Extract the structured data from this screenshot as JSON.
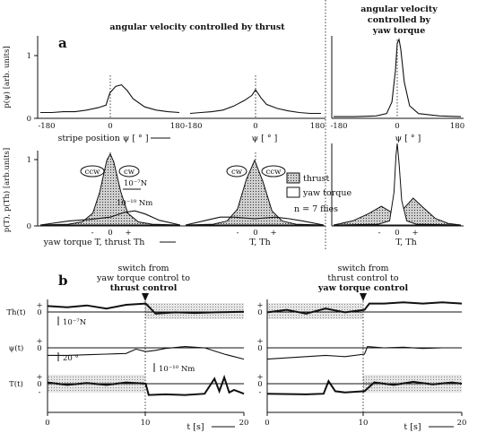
{
  "panel_a": {
    "label": "a",
    "title_thrust": "angular velocity controlled by thrust",
    "title_yaw": [
      "angular velocity",
      "controlled by",
      "yaw torque"
    ],
    "top_row": {
      "ylabel": "p(ψ) [arb. units]",
      "y_ticks": [
        "1",
        "0"
      ],
      "x_ticks_left": [
        "-180",
        "0",
        "180"
      ],
      "x_ticks_mid": [
        "-180",
        "0",
        "180"
      ],
      "x_ticks_right": [
        "-180",
        "0",
        "180"
      ],
      "xlabel_left": "stripe position ψ [ ° ]",
      "xlabel_mid": "ψ [ ° ]",
      "xlabel_right": "ψ [ ° ]"
    },
    "bottom_row": {
      "ylabel": "p(T), p(Th) [arb.units]",
      "y_ticks": [
        "1",
        "0"
      ],
      "x_ticks": [
        "-",
        "0",
        "+"
      ],
      "xlabel_left": "yaw torque T, thrust Th",
      "xlabel_mid": "T, Th",
      "xlabel_right": "T, Th",
      "rotation_left": [
        "ccw",
        "cw"
      ],
      "rotation_mid": [
        "cw",
        "ccw"
      ],
      "scale_thrust": "10⁻⁷N",
      "scale_torque": "10⁻¹⁰ Nm"
    },
    "legend": {
      "thrust": "thrust",
      "yaw_torque": "yaw torque",
      "n": "n = 7 flies"
    }
  },
  "panel_b": {
    "label": "b",
    "left_title": [
      "switch from",
      "yaw torque control to",
      "thrust control"
    ],
    "right_title": [
      "switch from",
      "thrust control to",
      "yaw torque control"
    ],
    "ylabel_thrust": "Th(t)",
    "ylabel_psi": "ψ(t)",
    "ylabel_torque": "T(t)",
    "sign_ticks": [
      "+",
      "0",
      "-"
    ],
    "scale_thrust": "10⁻⁷N",
    "scale_psi": "20 °",
    "scale_torque": "10⁻¹⁰ Nm",
    "x_ticks": [
      "0",
      "10",
      "20"
    ],
    "xlabel": "t [s]"
  },
  "chart_data": [
    {
      "type": "line",
      "panel": "a-top-left",
      "xlabel": "stripe position ψ [ ° ]",
      "ylabel": "p(ψ) [arb. units]",
      "xlim": [
        -180,
        180
      ],
      "ylim": [
        0,
        1
      ],
      "series": [
        {
          "x": [
            -180,
            -150,
            -120,
            -90,
            -60,
            -30,
            -10,
            0,
            15,
            30,
            45,
            60,
            90,
            120,
            150,
            180
          ],
          "values": [
            0.06,
            0.06,
            0.07,
            0.07,
            0.09,
            0.12,
            0.15,
            0.3,
            0.38,
            0.4,
            0.33,
            0.23,
            0.13,
            0.09,
            0.07,
            0.06
          ]
        }
      ]
    },
    {
      "type": "line",
      "panel": "a-top-mid",
      "xlabel": "ψ [ ° ]",
      "xlim": [
        -180,
        180
      ],
      "ylim": [
        0,
        1
      ],
      "series": [
        {
          "x": [
            -180,
            -150,
            -120,
            -90,
            -60,
            -30,
            -10,
            0,
            15,
            30,
            60,
            90,
            120,
            150,
            180
          ],
          "values": [
            0.05,
            0.06,
            0.07,
            0.09,
            0.14,
            0.21,
            0.27,
            0.34,
            0.24,
            0.16,
            0.11,
            0.08,
            0.06,
            0.05,
            0.05
          ]
        }
      ]
    },
    {
      "type": "line",
      "panel": "a-top-right",
      "xlabel": "ψ [ ° ]",
      "xlim": [
        -180,
        180
      ],
      "ylim": [
        0,
        1
      ],
      "series": [
        {
          "x": [
            -180,
            -120,
            -60,
            -30,
            -15,
            -5,
            0,
            5,
            10,
            20,
            35,
            60,
            120,
            180
          ],
          "values": [
            0.01,
            0.01,
            0.02,
            0.05,
            0.2,
            0.6,
            0.95,
            1.0,
            0.88,
            0.45,
            0.15,
            0.05,
            0.02,
            0.01
          ]
        }
      ]
    },
    {
      "type": "area",
      "panel": "a-bottom-left",
      "xlabel": "yaw torque T, thrust Th",
      "ylabel": "p(T), p(Th) [arb.units]",
      "xlim": [
        -1,
        1
      ],
      "ylim": [
        0,
        1
      ],
      "series": [
        {
          "name": "thrust",
          "x": [
            -1,
            -0.6,
            -0.4,
            -0.25,
            -0.15,
            -0.05,
            0,
            0.05,
            0.15,
            0.25,
            0.4,
            0.6,
            1
          ],
          "values": [
            0,
            0.01,
            0.04,
            0.15,
            0.42,
            0.82,
            0.9,
            0.8,
            0.42,
            0.15,
            0.04,
            0.01,
            0
          ]
        },
        {
          "name": "yaw torque",
          "x": [
            -1,
            -0.6,
            -0.3,
            0,
            0.2,
            0.35,
            0.5,
            0.7,
            1
          ],
          "values": [
            0,
            0.05,
            0.07,
            0.1,
            0.16,
            0.18,
            0.14,
            0.06,
            0
          ]
        }
      ]
    },
    {
      "type": "area",
      "panel": "a-bottom-mid",
      "xlabel": "T, Th",
      "xlim": [
        -1,
        1
      ],
      "ylim": [
        0,
        1
      ],
      "series": [
        {
          "name": "thrust",
          "x": [
            -1,
            -0.6,
            -0.4,
            -0.25,
            -0.12,
            0,
            0.12,
            0.25,
            0.4,
            0.6,
            1
          ],
          "values": [
            0,
            0.01,
            0.05,
            0.2,
            0.58,
            0.82,
            0.55,
            0.18,
            0.05,
            0.01,
            0
          ]
        },
        {
          "name": "yaw torque",
          "x": [
            -1,
            -0.7,
            -0.5,
            -0.3,
            0,
            0.3,
            0.5,
            0.7,
            1
          ],
          "values": [
            0,
            0.06,
            0.1,
            0.1,
            0.08,
            0.1,
            0.08,
            0.05,
            0
          ]
        }
      ]
    },
    {
      "type": "area",
      "panel": "a-bottom-right",
      "xlabel": "T, Th",
      "xlim": [
        -1,
        1
      ],
      "ylim": [
        0,
        1
      ],
      "series": [
        {
          "name": "thrust",
          "x": [
            -1,
            -0.7,
            -0.45,
            -0.25,
            -0.1,
            0,
            0.1,
            0.25,
            0.4,
            0.6,
            0.8,
            1
          ],
          "values": [
            0,
            0.05,
            0.14,
            0.23,
            0.16,
            0.1,
            0.2,
            0.33,
            0.22,
            0.08,
            0.02,
            0
          ]
        },
        {
          "name": "yaw torque",
          "x": [
            -1,
            -0.3,
            -0.12,
            -0.05,
            -0.02,
            0,
            0.03,
            0.07,
            0.15,
            0.3,
            1
          ],
          "values": [
            0,
            0.01,
            0.05,
            0.4,
            0.85,
            1.0,
            0.75,
            0.3,
            0.05,
            0.01,
            0
          ]
        }
      ]
    },
    {
      "type": "line",
      "panel": "b-left",
      "xlabel": "t [s]",
      "xlim": [
        0,
        20
      ],
      "series": [
        {
          "name": "Th(t)",
          "x": [
            0,
            2,
            4,
            6,
            8,
            10,
            11,
            13,
            15,
            17,
            20
          ],
          "values": [
            0.4,
            0.3,
            0.45,
            0.2,
            0.5,
            0.6,
            -0.2,
            -0.1,
            -0.15,
            -0.1,
            -0.05
          ]
        },
        {
          "name": "ψ(t)",
          "x": [
            0,
            2,
            4,
            6,
            8,
            9,
            10,
            11,
            12,
            14,
            16,
            18,
            20
          ],
          "values": [
            -0.6,
            -0.6,
            -0.55,
            -0.5,
            -0.45,
            -0.1,
            -0.3,
            -0.2,
            -0.05,
            0.1,
            0.0,
            -0.5,
            -0.9
          ]
        },
        {
          "name": "T(t)",
          "x": [
            0,
            2,
            4,
            6,
            8,
            10,
            10.3,
            12,
            14,
            16,
            17,
            17.5,
            18,
            18.5,
            19,
            20
          ],
          "values": [
            0.1,
            -0.1,
            0.05,
            -0.1,
            0.1,
            0.0,
            -0.9,
            -0.85,
            -0.9,
            -0.8,
            0.4,
            -0.6,
            0.5,
            -0.7,
            -0.5,
            -0.8
          ]
        }
      ]
    },
    {
      "type": "line",
      "panel": "b-right",
      "xlabel": "t [s]",
      "xlim": [
        0,
        20
      ],
      "series": [
        {
          "name": "Th(t)",
          "x": [
            0,
            2,
            4,
            6,
            8,
            10,
            10.5,
            12,
            14,
            16,
            18,
            20
          ],
          "values": [
            -0.1,
            0.1,
            -0.2,
            0.2,
            -0.1,
            0.1,
            0.6,
            0.6,
            0.7,
            0.6,
            0.7,
            0.6
          ]
        },
        {
          "name": "ψ(t)",
          "x": [
            0,
            2,
            4,
            6,
            8,
            10,
            10.3,
            12,
            14,
            16,
            18,
            20
          ],
          "values": [
            -0.9,
            -0.8,
            -0.7,
            -0.6,
            -0.7,
            -0.5,
            0.1,
            0.0,
            0.05,
            -0.05,
            0.0,
            0.0
          ]
        },
        {
          "name": "T(t)",
          "x": [
            0,
            4,
            5.8,
            6.3,
            7,
            8,
            10,
            11,
            13,
            15,
            17,
            19,
            20
          ],
          "values": [
            -0.8,
            -0.85,
            -0.8,
            0.2,
            -0.6,
            -0.7,
            -0.6,
            0.1,
            -0.1,
            0.15,
            -0.05,
            0.1,
            0.0
          ]
        }
      ]
    }
  ]
}
